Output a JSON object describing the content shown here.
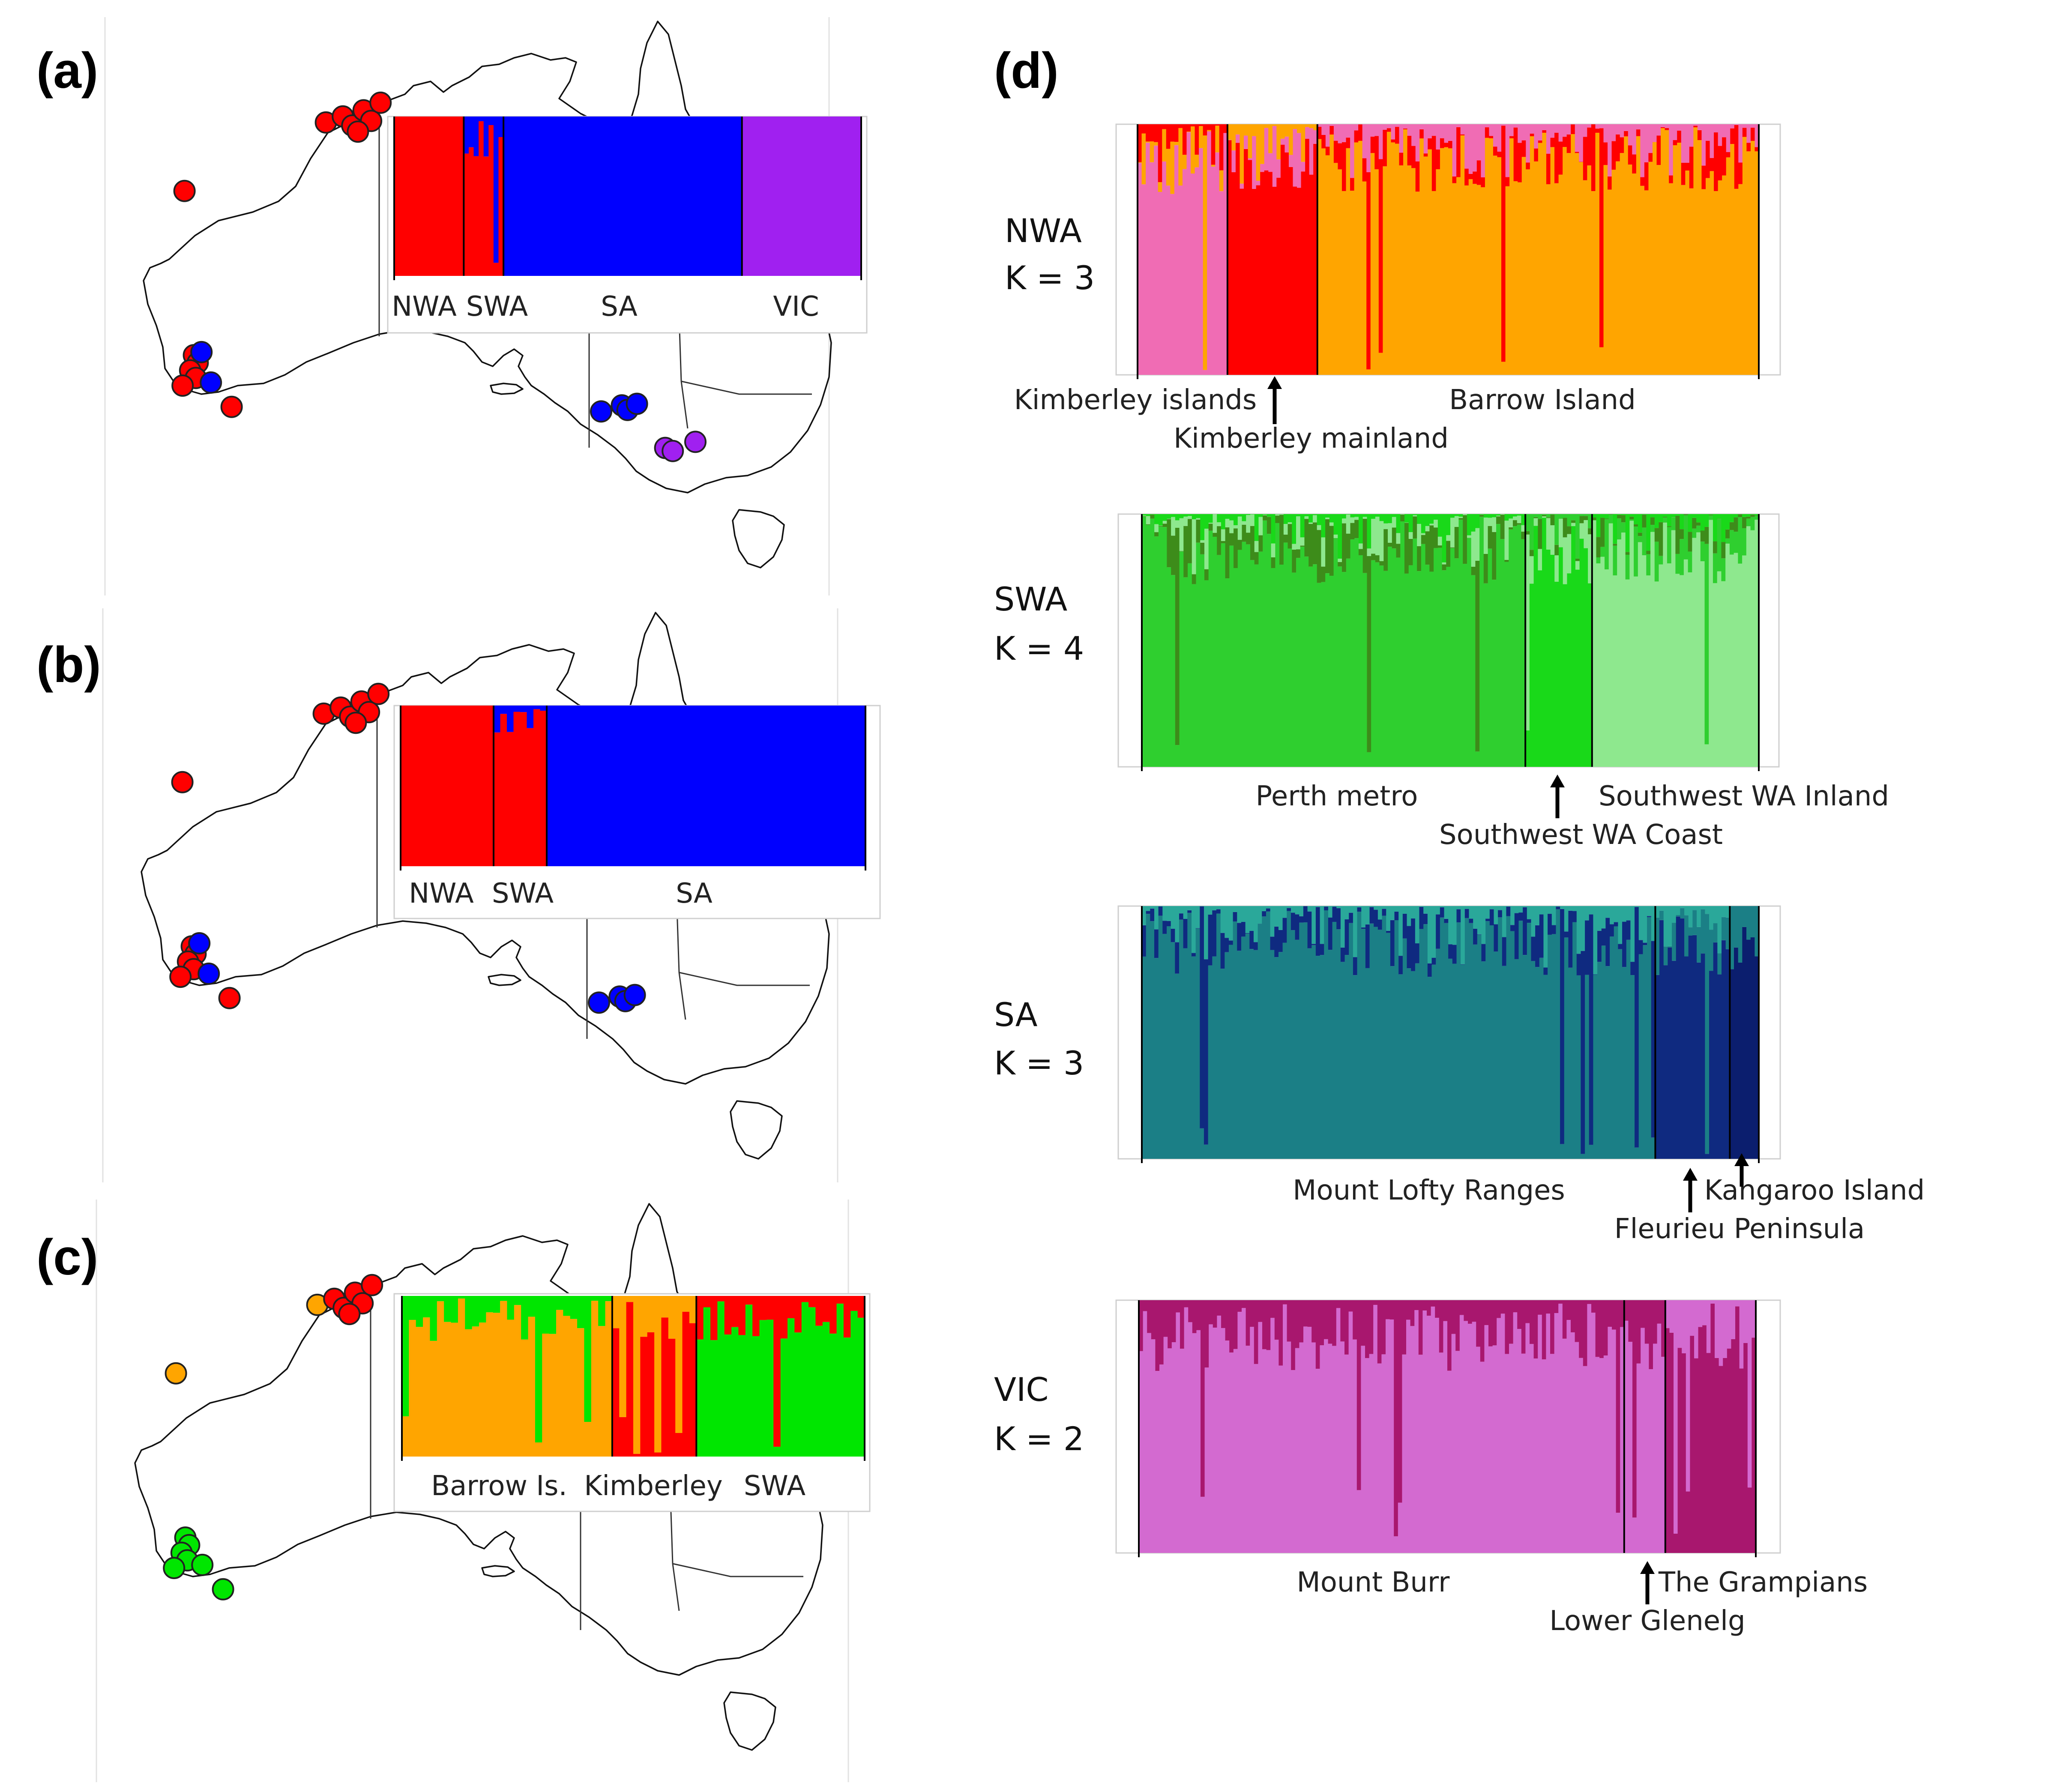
{
  "panels": {
    "a": {
      "letter": "(a)",
      "labels": [
        "NWA",
        "SWA",
        "SA",
        "VIC"
      ]
    },
    "b": {
      "letter": "(b)",
      "labels": [
        "NWA",
        "SWA",
        "SA"
      ]
    },
    "c": {
      "letter": "(c)",
      "labels": [
        "Barrow Is.",
        "Kimberley",
        "SWA"
      ]
    },
    "d": {
      "letter": "(d)"
    }
  },
  "regions": {
    "nwa": {
      "name": "NWA",
      "k": "K = 3",
      "pops": [
        "Kimberley islands",
        "Kimberley mainland",
        "Barrow Island"
      ]
    },
    "swa": {
      "name": "SWA",
      "k": "K = 4",
      "pops": [
        "Perth metro",
        "Southwest WA Coast",
        "Southwest WA Inland"
      ]
    },
    "sa": {
      "name": "SA",
      "k": "K = 3",
      "pops": [
        "Mount Lofty Ranges",
        "Fleurieu Peninsula",
        "Kangaroo Island"
      ]
    },
    "vic": {
      "name": "VIC",
      "k": "K = 2",
      "pops": [
        "Mount Burr",
        "Lower Glenelg",
        "The Grampians"
      ]
    }
  },
  "colors": {
    "red": "#ff0000",
    "blue": "#0000ff",
    "purple": "#a020f0",
    "orange": "#ffa500",
    "green": "#00e600",
    "pink": "#f06cb4",
    "darkred": "#d4001a",
    "g_light": "#8ee88e",
    "g_mid": "#2fcf2f",
    "g_bright": "#19d919",
    "g_dark": "#3d8c1a",
    "teal": "#1b7f86",
    "teal_light": "#2aa89a",
    "navy": "#0f2a80",
    "navy_dark": "#0b1e6e",
    "orchid": "#d36ad0",
    "magenta": "#a8176e"
  },
  "chart_data": [
    {
      "type": "bar",
      "panel": "a",
      "stacked": true,
      "ylim": [
        0,
        1
      ],
      "groups": [
        {
          "name": "NWA",
          "n": 14,
          "colors": [
            "red"
          ]
        },
        {
          "name": "SWA",
          "n": 8,
          "colors": [
            "red",
            "blue"
          ]
        },
        {
          "name": "SA",
          "n": 48,
          "colors": [
            "blue"
          ]
        },
        {
          "name": "VIC",
          "n": 24,
          "colors": [
            "purple"
          ]
        }
      ],
      "map_points": [
        {
          "lon": 122.9,
          "lat": -16.3,
          "color": "red"
        },
        {
          "lon": 123.8,
          "lat": -15.9,
          "color": "red"
        },
        {
          "lon": 124.3,
          "lat": -16.5,
          "color": "red"
        },
        {
          "lon": 124.9,
          "lat": -15.5,
          "color": "red"
        },
        {
          "lon": 125.3,
          "lat": -16.2,
          "color": "red"
        },
        {
          "lon": 124.6,
          "lat": -16.9,
          "color": "red"
        },
        {
          "lon": 125.8,
          "lat": -15.0,
          "color": "red"
        },
        {
          "lon": 115.4,
          "lat": -20.8,
          "color": "red"
        },
        {
          "lon": 115.9,
          "lat": -31.6,
          "color": "red"
        },
        {
          "lon": 116.1,
          "lat": -32.1,
          "color": "red"
        },
        {
          "lon": 115.7,
          "lat": -32.6,
          "color": "red"
        },
        {
          "lon": 116.0,
          "lat": -33.1,
          "color": "red"
        },
        {
          "lon": 115.3,
          "lat": -33.6,
          "color": "red"
        },
        {
          "lon": 116.8,
          "lat": -33.4,
          "color": "blue"
        },
        {
          "lon": 117.9,
          "lat": -35.0,
          "color": "red"
        },
        {
          "lon": 116.3,
          "lat": -31.4,
          "color": "blue"
        },
        {
          "lon": 138.6,
          "lat": -34.9,
          "color": "blue"
        },
        {
          "lon": 137.5,
          "lat": -35.3,
          "color": "blue"
        },
        {
          "lon": 138.9,
          "lat": -35.2,
          "color": "blue"
        },
        {
          "lon": 139.4,
          "lat": -34.8,
          "color": "blue"
        },
        {
          "lon": 140.9,
          "lat": -37.7,
          "color": "purple"
        },
        {
          "lon": 141.3,
          "lat": -37.9,
          "color": "purple"
        },
        {
          "lon": 142.5,
          "lat": -37.3,
          "color": "purple"
        }
      ]
    },
    {
      "type": "bar",
      "panel": "b",
      "stacked": true,
      "ylim": [
        0,
        1
      ],
      "groups": [
        {
          "name": "NWA",
          "n": 14,
          "colors": [
            "red"
          ]
        },
        {
          "name": "SWA",
          "n": 8,
          "colors": [
            "red",
            "blue"
          ]
        },
        {
          "name": "SA",
          "n": 48,
          "colors": [
            "blue"
          ]
        }
      ],
      "map_points": [
        {
          "lon": 122.9,
          "lat": -16.3,
          "color": "red"
        },
        {
          "lon": 123.8,
          "lat": -15.9,
          "color": "red"
        },
        {
          "lon": 124.3,
          "lat": -16.5,
          "color": "red"
        },
        {
          "lon": 124.9,
          "lat": -15.5,
          "color": "red"
        },
        {
          "lon": 125.3,
          "lat": -16.2,
          "color": "red"
        },
        {
          "lon": 124.6,
          "lat": -16.9,
          "color": "red"
        },
        {
          "lon": 125.8,
          "lat": -15.0,
          "color": "red"
        },
        {
          "lon": 115.4,
          "lat": -20.8,
          "color": "red"
        },
        {
          "lon": 115.9,
          "lat": -31.6,
          "color": "red"
        },
        {
          "lon": 116.1,
          "lat": -32.1,
          "color": "red"
        },
        {
          "lon": 115.7,
          "lat": -32.6,
          "color": "red"
        },
        {
          "lon": 116.0,
          "lat": -33.1,
          "color": "red"
        },
        {
          "lon": 115.3,
          "lat": -33.6,
          "color": "red"
        },
        {
          "lon": 116.8,
          "lat": -33.4,
          "color": "blue"
        },
        {
          "lon": 117.9,
          "lat": -35.0,
          "color": "red"
        },
        {
          "lon": 116.3,
          "lat": -31.4,
          "color": "blue"
        },
        {
          "lon": 138.6,
          "lat": -34.9,
          "color": "blue"
        },
        {
          "lon": 137.5,
          "lat": -35.3,
          "color": "blue"
        },
        {
          "lon": 138.9,
          "lat": -35.2,
          "color": "blue"
        },
        {
          "lon": 139.4,
          "lat": -34.8,
          "color": "blue"
        }
      ]
    },
    {
      "type": "bar",
      "panel": "c",
      "stacked": true,
      "ylim": [
        0,
        1
      ],
      "groups": [
        {
          "name": "Barrow Is.",
          "n": 30,
          "colors": [
            "orange",
            "green"
          ]
        },
        {
          "name": "Kimberley",
          "n": 12,
          "colors": [
            "red",
            "orange"
          ]
        },
        {
          "name": "SWA",
          "n": 24,
          "colors": [
            "green",
            "red"
          ]
        }
      ],
      "map_points": [
        {
          "lon": 122.9,
          "lat": -16.3,
          "color": "orange"
        },
        {
          "lon": 123.8,
          "lat": -15.9,
          "color": "red"
        },
        {
          "lon": 124.3,
          "lat": -16.5,
          "color": "red"
        },
        {
          "lon": 124.9,
          "lat": -15.5,
          "color": "red"
        },
        {
          "lon": 125.3,
          "lat": -16.2,
          "color": "red"
        },
        {
          "lon": 124.6,
          "lat": -16.9,
          "color": "red"
        },
        {
          "lon": 125.8,
          "lat": -15.0,
          "color": "red"
        },
        {
          "lon": 115.4,
          "lat": -20.8,
          "color": "orange"
        },
        {
          "lon": 115.9,
          "lat": -31.6,
          "color": "green"
        },
        {
          "lon": 116.1,
          "lat": -32.1,
          "color": "green"
        },
        {
          "lon": 115.7,
          "lat": -32.6,
          "color": "green"
        },
        {
          "lon": 116.0,
          "lat": -33.1,
          "color": "green"
        },
        {
          "lon": 115.3,
          "lat": -33.6,
          "color": "green"
        },
        {
          "lon": 116.8,
          "lat": -33.4,
          "color": "green"
        },
        {
          "lon": 117.9,
          "lat": -35.0,
          "color": "green"
        }
      ]
    },
    {
      "type": "bar",
      "panel": "d",
      "region": "NWA",
      "k": 3,
      "stacked": true,
      "ylim": [
        0,
        1
      ],
      "groups": [
        {
          "name": "Kimberley islands",
          "n": 22,
          "colors": [
            "pink",
            "orange",
            "red"
          ]
        },
        {
          "name": "Kimberley mainland",
          "n": 22,
          "colors": [
            "red",
            "pink",
            "orange"
          ]
        },
        {
          "name": "Barrow Island",
          "n": 108,
          "colors": [
            "orange",
            "red",
            "pink"
          ]
        }
      ]
    },
    {
      "type": "bar",
      "panel": "d",
      "region": "SWA",
      "k": 4,
      "stacked": true,
      "ylim": [
        0,
        1
      ],
      "groups": [
        {
          "name": "Perth metro",
          "n": 92,
          "colors": [
            "g_mid",
            "g_dark",
            "g_light",
            "g_bright"
          ]
        },
        {
          "name": "Southwest WA Coast",
          "n": 16,
          "colors": [
            "g_bright",
            "g_light",
            "g_dark",
            "g_mid"
          ]
        },
        {
          "name": "Southwest WA Inland",
          "n": 40,
          "colors": [
            "g_light",
            "g_mid",
            "g_dark",
            "g_bright"
          ]
        }
      ]
    },
    {
      "type": "bar",
      "panel": "d",
      "region": "SA",
      "k": 3,
      "stacked": true,
      "ylim": [
        0,
        1
      ],
      "groups": [
        {
          "name": "Mount Lofty Ranges",
          "n": 124,
          "colors": [
            "teal",
            "navy",
            "teal_light"
          ]
        },
        {
          "name": "Fleurieu Peninsula",
          "n": 18,
          "colors": [
            "navy",
            "teal",
            "teal_light"
          ]
        },
        {
          "name": "Kangaroo Island",
          "n": 7,
          "colors": [
            "navy_dark",
            "teal"
          ]
        }
      ]
    },
    {
      "type": "bar",
      "panel": "d",
      "region": "VIC",
      "k": 2,
      "stacked": true,
      "ylim": [
        0,
        1
      ],
      "groups": [
        {
          "name": "Mount Burr",
          "n": 118,
          "colors": [
            "orchid",
            "magenta"
          ]
        },
        {
          "name": "Lower Glenelg",
          "n": 10,
          "colors": [
            "orchid",
            "magenta"
          ]
        },
        {
          "name": "The Grampians",
          "n": 22,
          "colors": [
            "magenta",
            "orchid"
          ]
        }
      ]
    }
  ]
}
